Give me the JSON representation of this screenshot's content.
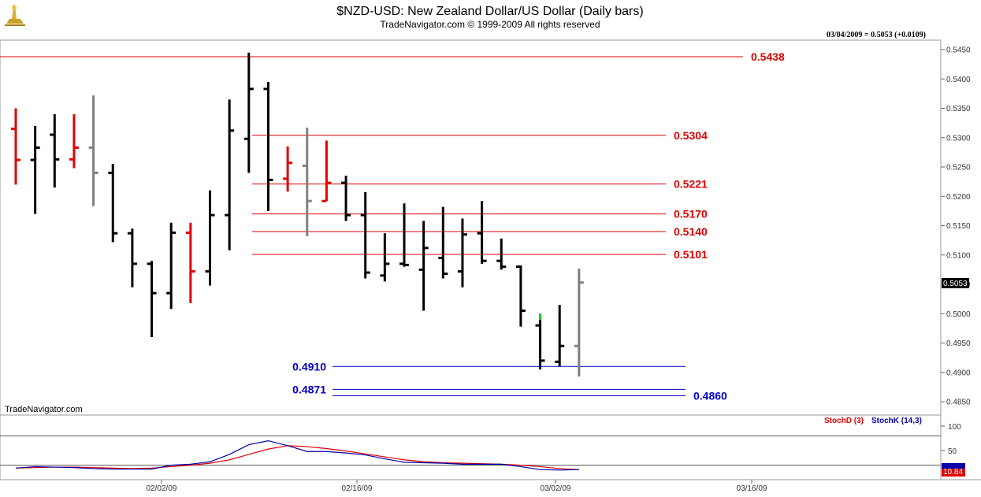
{
  "header": {
    "title": "$NZD-USD:  New Zealand Dollar/US Dollar  (Daily bars)",
    "subtitle": "TradeNavigator.com © 1999-2009 All rights reserved",
    "quote": "03/04/2009 = 0.5053 (+0.0109)"
  },
  "watermark": "TradeNavigator.com",
  "last_price_label": "0.5053",
  "stoch_last_label": "10.84",
  "colors": {
    "up_bar": "#000000",
    "down_bar": "#e00000",
    "neutral_bar": "#808080",
    "resistance": "#e00000",
    "support": "#0000cc",
    "stochD": "#e00000",
    "stochK": "#0000aa"
  },
  "chart_data": [
    {
      "type": "ohlc",
      "ylim": [
        0.4825,
        0.5475
      ],
      "yticks": [
        "0.4850",
        "0.4900",
        "0.4950",
        "0.5000",
        "0.5050",
        "0.5100",
        "0.5150",
        "0.5200",
        "0.5250",
        "0.5300",
        "0.5350",
        "0.5400",
        "0.5450"
      ],
      "xticks": [
        "02/02/09",
        "02/16/09",
        "03/02/09",
        "03/16/09"
      ],
      "bars": [
        {
          "o": 0.5315,
          "h": 0.535,
          "l": 0.522,
          "c": 0.5262,
          "color": "down"
        },
        {
          "o": 0.5262,
          "h": 0.532,
          "l": 0.517,
          "c": 0.5283,
          "color": "up"
        },
        {
          "o": 0.5305,
          "h": 0.534,
          "l": 0.5215,
          "c": 0.5263,
          "color": "up"
        },
        {
          "o": 0.5263,
          "h": 0.534,
          "l": 0.5248,
          "c": 0.5283,
          "color": "down"
        },
        {
          "o": 0.5283,
          "h": 0.5372,
          "l": 0.5183,
          "c": 0.524,
          "color": "neutral"
        },
        {
          "o": 0.524,
          "h": 0.5255,
          "l": 0.5122,
          "c": 0.5137,
          "color": "up"
        },
        {
          "o": 0.5137,
          "h": 0.5145,
          "l": 0.5045,
          "c": 0.5085,
          "color": "up"
        },
        {
          "o": 0.5085,
          "h": 0.509,
          "l": 0.496,
          "c": 0.5035,
          "color": "up"
        },
        {
          "o": 0.5035,
          "h": 0.5155,
          "l": 0.5008,
          "c": 0.5138,
          "color": "up"
        },
        {
          "o": 0.5138,
          "h": 0.5155,
          "l": 0.5018,
          "c": 0.5072,
          "color": "down"
        },
        {
          "o": 0.5072,
          "h": 0.521,
          "l": 0.5048,
          "c": 0.5168,
          "color": "up"
        },
        {
          "o": 0.5168,
          "h": 0.5365,
          "l": 0.5108,
          "c": 0.5312,
          "color": "up"
        },
        {
          "o": 0.5298,
          "h": 0.5445,
          "l": 0.524,
          "c": 0.5383,
          "color": "up"
        },
        {
          "o": 0.5383,
          "h": 0.5395,
          "l": 0.5175,
          "c": 0.5228,
          "color": "up"
        },
        {
          "o": 0.523,
          "h": 0.5285,
          "l": 0.5208,
          "c": 0.5257,
          "color": "down"
        },
        {
          "o": 0.5252,
          "h": 0.5317,
          "l": 0.5132,
          "c": 0.5192,
          "color": "neutral"
        },
        {
          "o": 0.5192,
          "h": 0.5295,
          "l": 0.5192,
          "c": 0.5223,
          "color": "down"
        },
        {
          "o": 0.5223,
          "h": 0.5235,
          "l": 0.5158,
          "c": 0.5168,
          "color": "up"
        },
        {
          "o": 0.5168,
          "h": 0.5207,
          "l": 0.506,
          "c": 0.507,
          "color": "up"
        },
        {
          "o": 0.5065,
          "h": 0.5137,
          "l": 0.5055,
          "c": 0.5085,
          "color": "up"
        },
        {
          "o": 0.5085,
          "h": 0.5188,
          "l": 0.508,
          "c": 0.5083,
          "color": "up"
        },
        {
          "o": 0.5075,
          "h": 0.5158,
          "l": 0.5005,
          "c": 0.5112,
          "color": "up"
        },
        {
          "o": 0.5095,
          "h": 0.5182,
          "l": 0.506,
          "c": 0.5068,
          "color": "up"
        },
        {
          "o": 0.5072,
          "h": 0.5162,
          "l": 0.5045,
          "c": 0.5135,
          "color": "up"
        },
        {
          "o": 0.5137,
          "h": 0.5192,
          "l": 0.5085,
          "c": 0.509,
          "color": "up"
        },
        {
          "o": 0.509,
          "h": 0.5128,
          "l": 0.5075,
          "c": 0.508,
          "color": "up"
        },
        {
          "o": 0.508,
          "h": 0.5082,
          "l": 0.4978,
          "c": 0.5005,
          "color": "up"
        },
        {
          "o": 0.498,
          "h": 0.5,
          "l": 0.4905,
          "c": 0.492,
          "color": "up"
        },
        {
          "o": 0.4918,
          "h": 0.5015,
          "l": 0.491,
          "c": 0.4945,
          "color": "up"
        },
        {
          "o": 0.4945,
          "h": 0.5077,
          "l": 0.4893,
          "c": 0.5053,
          "color": "neutral"
        }
      ],
      "resistance_levels": [
        {
          "value": 0.5438,
          "label": "0.5438",
          "x_from": 0,
          "x_to": 943
        },
        {
          "value": 0.5304,
          "label": "0.5304",
          "x_from": 320,
          "x_to": 845
        },
        {
          "value": 0.5221,
          "label": "0.5221",
          "x_from": 320,
          "x_to": 845
        },
        {
          "value": 0.517,
          "label": "0.5170",
          "x_from": 320,
          "x_to": 845
        },
        {
          "value": 0.514,
          "label": "0.5140",
          "x_from": 320,
          "x_to": 845
        },
        {
          "value": 0.5101,
          "label": "0.5101",
          "x_from": 320,
          "x_to": 845
        }
      ],
      "support_levels": [
        {
          "value": 0.491,
          "label": "0.4910",
          "side": "left"
        },
        {
          "value": 0.4871,
          "label": "0.4871",
          "side": "left"
        },
        {
          "value": 0.486,
          "label": "0.4860",
          "side": "right"
        }
      ]
    },
    {
      "type": "line",
      "ylim": [
        0,
        110
      ],
      "yticks": [
        "100",
        "50"
      ],
      "guides": [
        80,
        20
      ],
      "series": [
        {
          "name": "StochD (3)",
          "values": [
            14,
            15,
            16,
            16,
            15,
            14,
            13,
            14,
            17,
            20,
            24,
            31,
            42,
            53,
            60,
            58,
            54,
            49,
            43,
            37,
            31,
            27,
            25,
            24,
            23,
            22,
            20,
            17,
            13,
            11
          ]
        },
        {
          "name": "StochK (14,3)",
          "values": [
            14,
            17,
            16,
            15,
            13,
            12,
            12,
            12,
            20,
            22,
            27,
            42,
            62,
            70,
            60,
            48,
            48,
            45,
            41,
            33,
            26,
            25,
            24,
            22,
            22,
            22,
            17,
            11,
            10,
            11
          ]
        }
      ]
    }
  ]
}
